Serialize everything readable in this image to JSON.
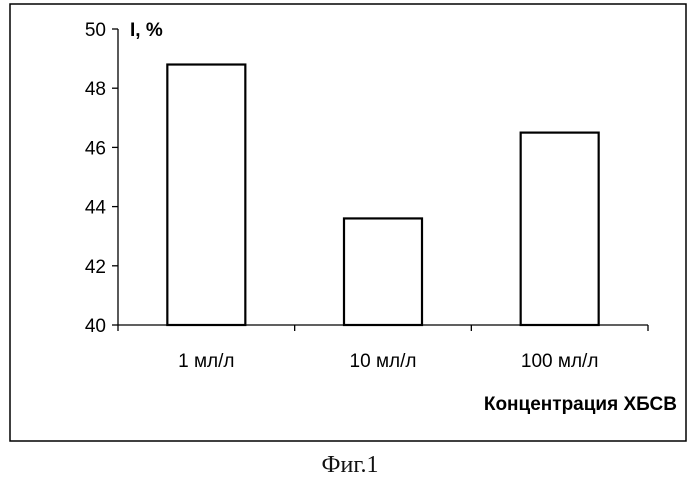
{
  "chart_data": {
    "type": "bar",
    "categories": [
      "1 мл/л",
      "10 мл/л",
      "100 мл/л"
    ],
    "values": [
      48.8,
      43.6,
      46.5
    ],
    "ylabel": "I, %",
    "xlabel": "Концентрация ХБСВ",
    "ylim": [
      40,
      50
    ],
    "yticks": [
      40,
      42,
      44,
      46,
      48,
      50
    ],
    "grid": false,
    "legend": "none"
  },
  "caption": "Фиг.1"
}
